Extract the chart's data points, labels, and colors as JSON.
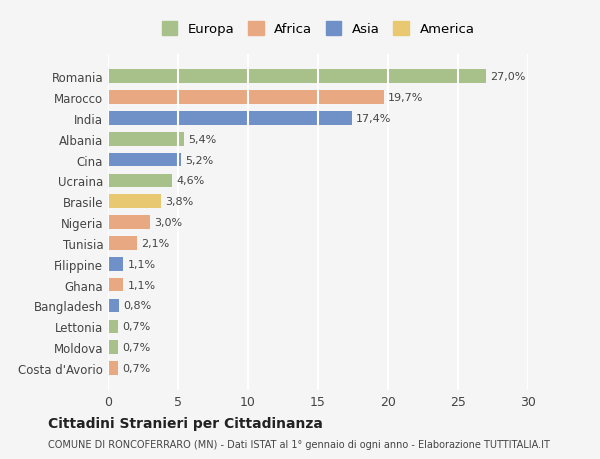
{
  "countries": [
    "Romania",
    "Marocco",
    "India",
    "Albania",
    "Cina",
    "Ucraina",
    "Brasile",
    "Nigeria",
    "Tunisia",
    "Filippine",
    "Ghana",
    "Bangladesh",
    "Lettonia",
    "Moldova",
    "Costa d'Avorio"
  ],
  "values": [
    27.0,
    19.7,
    17.4,
    5.4,
    5.2,
    4.6,
    3.8,
    3.0,
    2.1,
    1.1,
    1.1,
    0.8,
    0.7,
    0.7,
    0.7
  ],
  "labels": [
    "27,0%",
    "19,7%",
    "17,4%",
    "5,4%",
    "5,2%",
    "4,6%",
    "3,8%",
    "3,0%",
    "2,1%",
    "1,1%",
    "1,1%",
    "0,8%",
    "0,7%",
    "0,7%",
    "0,7%"
  ],
  "continents": [
    "Europa",
    "Africa",
    "Asia",
    "Europa",
    "Asia",
    "Europa",
    "America",
    "Africa",
    "Africa",
    "Asia",
    "Africa",
    "Asia",
    "Europa",
    "Europa",
    "Africa"
  ],
  "colors": {
    "Europa": "#a8c08a",
    "Africa": "#e8a882",
    "Asia": "#7090c8",
    "America": "#e8c870"
  },
  "legend_colors": {
    "Europa": "#a8c08a",
    "Africa": "#e8a882",
    "Asia": "#7090c8",
    "America": "#e8c870"
  },
  "title": "Cittadini Stranieri per Cittadinanza",
  "subtitle": "COMUNE DI RONCOFERRARO (MN) - Dati ISTAT al 1° gennaio di ogni anno - Elaborazione TUTTITALIA.IT",
  "xlim": [
    0,
    30
  ],
  "xticks": [
    0,
    5,
    10,
    15,
    20,
    25,
    30
  ],
  "background_color": "#f5f5f5",
  "grid_color": "#ffffff",
  "bar_height": 0.65
}
